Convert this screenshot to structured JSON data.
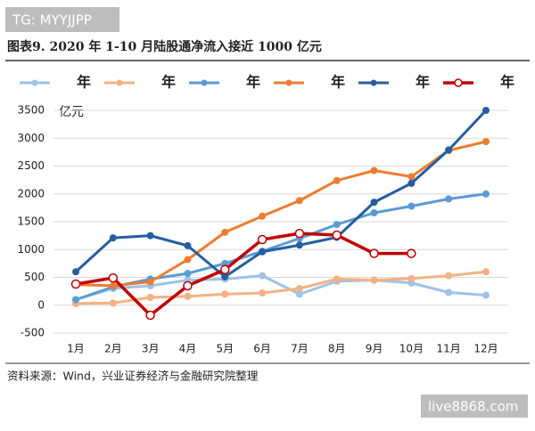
{
  "watermarks": [
    "TG: MYYJJPP",
    "live8868.com"
  ],
  "source": "资料来源：Wind，兴业证券经济与金融研究院整理",
  "chart_data": {
    "type": "line",
    "title": "图表9. 2020 年 1-10 月陆股通净流入接近 1000 亿元",
    "y_label": "亿元",
    "categories": [
      "1月",
      "2月",
      "3月",
      "4月",
      "5月",
      "6月",
      "7月",
      "8月",
      "9月",
      "10月",
      "11月",
      "12月"
    ],
    "series": [
      {
        "name": "年",
        "color": "#9dc3e6",
        "width": 3,
        "marker": "filled",
        "values": [
          100,
          300,
          350,
          450,
          470,
          530,
          200,
          430,
          450,
          400,
          230,
          180
        ]
      },
      {
        "name": "年",
        "color": "#f4b183",
        "width": 3,
        "marker": "filled",
        "values": [
          30,
          40,
          140,
          160,
          200,
          220,
          300,
          470,
          450,
          480,
          530,
          600
        ]
      },
      {
        "name": "年",
        "color": "#5b9bd5",
        "width": 3,
        "marker": "filled",
        "values": [
          100,
          330,
          470,
          570,
          750,
          970,
          1200,
          1450,
          1660,
          1780,
          1910,
          2000
        ]
      },
      {
        "name": "年",
        "color": "#ed7d31",
        "width": 3,
        "marker": "filled",
        "values": [
          370,
          350,
          420,
          820,
          1310,
          1600,
          1880,
          2240,
          2420,
          2310,
          2780,
          2940
        ]
      },
      {
        "name": "年",
        "color": "#255e9f",
        "width": 3,
        "marker": "filled",
        "values": [
          600,
          1210,
          1250,
          1070,
          510,
          960,
          1080,
          1220,
          1850,
          2190,
          2790,
          3500
        ]
      },
      {
        "name": "年",
        "color": "#c00000",
        "width": 3.5,
        "marker": "hollow",
        "values": [
          380,
          490,
          -180,
          350,
          640,
          1180,
          1290,
          1260,
          930,
          930,
          null,
          null
        ]
      }
    ],
    "ylim": [
      -500,
      3500
    ],
    "yticks": [
      -500,
      0,
      500,
      1000,
      1500,
      2000,
      2500,
      3000,
      3500
    ],
    "grid": true
  }
}
